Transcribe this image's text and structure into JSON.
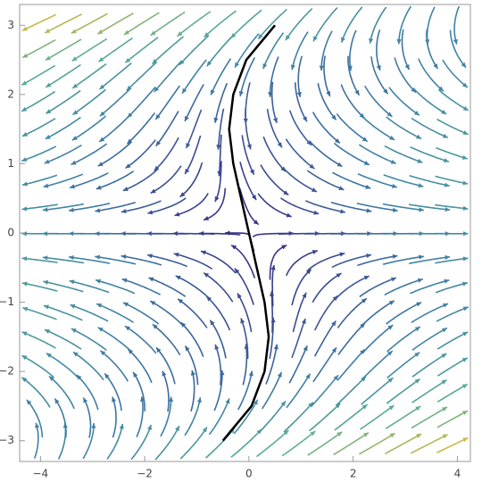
{
  "chart_data": {
    "type": "stream",
    "xlim": [
      -4.4,
      4.25
    ],
    "ylim": [
      -3.3,
      3.3
    ],
    "xticks": [
      {
        "value": -4,
        "label": "−4"
      },
      {
        "value": -2,
        "label": "−2"
      },
      0,
      2,
      4
    ],
    "yticks": [
      {
        "value": -3,
        "label": "−3"
      },
      {
        "value": -2,
        "label": "−2"
      },
      {
        "value": -1,
        "label": "−1"
      },
      0,
      1,
      2,
      3
    ],
    "series": [
      {
        "color": "#000000",
        "x": [
          -0.5,
          0.05,
          0.3,
          0.38,
          0.3,
          0.15,
          0,
          -0.15,
          -0.3,
          -0.38,
          -0.3,
          -0.05,
          0.5
        ],
        "values": [
          -3,
          -2.5,
          -2,
          -1.5,
          -1,
          -0.5,
          0,
          0.5,
          1,
          1.5,
          2,
          2.5,
          3
        ]
      }
    ]
  }
}
